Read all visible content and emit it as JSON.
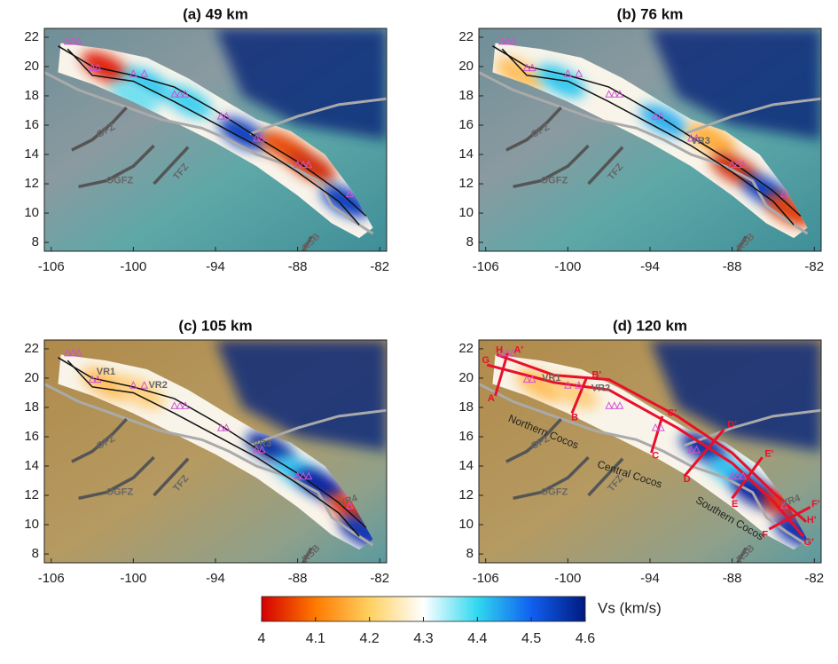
{
  "panels": [
    {
      "title": "(a) 49 km",
      "xlim": [
        -106.5,
        -81.5
      ],
      "ylim": [
        7.4,
        22.6
      ],
      "xticks": [
        -106,
        -100,
        -94,
        -88,
        -82
      ],
      "yticks": [
        8,
        10,
        12,
        14,
        16,
        18,
        20,
        22
      ],
      "features": [
        "OFZ",
        "OGFZ",
        "TFZ",
        "RSB"
      ]
    },
    {
      "title": "(b) 76 km",
      "xlim": [
        -106.5,
        -81.5
      ],
      "ylim": [
        7.4,
        22.6
      ],
      "xticks": [
        -106,
        -100,
        -94,
        -88,
        -82
      ],
      "yticks": [
        8,
        10,
        12,
        14,
        16,
        18,
        20,
        22
      ],
      "features": [
        "OFZ",
        "OGFZ",
        "TFZ",
        "RSB",
        "VR3"
      ]
    },
    {
      "title": "(c) 105 km",
      "xlim": [
        -106.5,
        -81.5
      ],
      "ylim": [
        7.4,
        22.6
      ],
      "xticks": [
        -106,
        -100,
        -94,
        -88,
        -82
      ],
      "yticks": [
        8,
        10,
        12,
        14,
        16,
        18,
        20,
        22
      ],
      "features": [
        "OFZ",
        "OGFZ",
        "TFZ",
        "RSB",
        "VR1",
        "VR2",
        "VR3",
        "VR4"
      ]
    },
    {
      "title": "(d) 120 km",
      "xlim": [
        -106.5,
        -81.5
      ],
      "ylim": [
        7.4,
        22.6
      ],
      "xticks": [
        -106,
        -100,
        -94,
        -88,
        -82
      ],
      "yticks": [
        8,
        10,
        12,
        14,
        16,
        18,
        20,
        22
      ],
      "features": [
        "OFZ",
        "OGFZ",
        "TFZ",
        "RSB",
        "VR1",
        "VR2",
        "VR4",
        "Northern Cocos",
        "Central Cocos",
        "Southern Cocos",
        "A",
        "A'",
        "B",
        "B'",
        "C",
        "C'",
        "D",
        "D'",
        "E",
        "E'",
        "F",
        "F'",
        "G",
        "G'",
        "H",
        "H'"
      ]
    }
  ],
  "colorbar": {
    "label": "Vs (km/s)",
    "lim": [
      4,
      4.6
    ],
    "ticks": [
      4,
      4.1,
      4.2,
      4.3,
      4.4,
      4.5,
      4.6
    ],
    "colors": [
      "#d40000",
      "#ff7a00",
      "#ffd060",
      "#ffffff",
      "#30d8f0",
      "#1060f0",
      "#001a80"
    ]
  }
}
